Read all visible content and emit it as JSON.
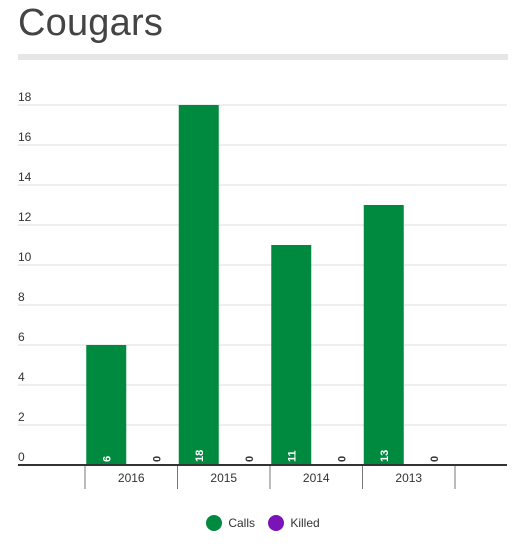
{
  "title": "Cougars",
  "chart_data": {
    "type": "bar",
    "categories": [
      "2016",
      "2015",
      "2014",
      "2013"
    ],
    "series": [
      {
        "name": "Calls",
        "color": "#008a3f",
        "values": [
          6,
          18,
          11,
          13
        ]
      },
      {
        "name": "Killed",
        "color": "#7a14b8",
        "values": [
          0,
          0,
          0,
          0
        ]
      }
    ],
    "data_labels": true,
    "ylim": [
      0,
      18
    ],
    "yticks": [
      0,
      2,
      4,
      6,
      8,
      10,
      12,
      14,
      16,
      18
    ],
    "grid": true,
    "legend": "bottom-center"
  }
}
